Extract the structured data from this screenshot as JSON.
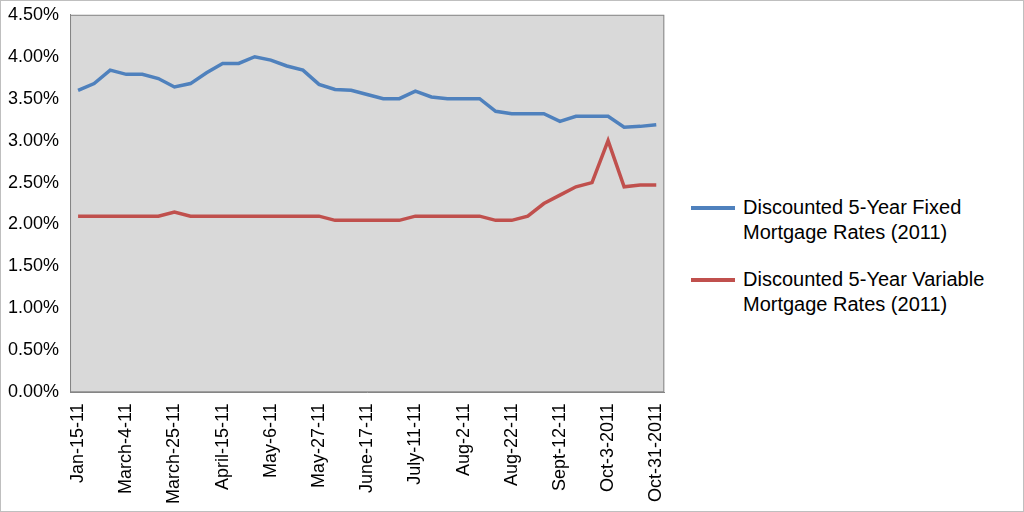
{
  "chart_data": {
    "type": "line",
    "categories": [
      "Jan-15-11",
      null,
      null,
      "March-4-11",
      null,
      null,
      "March-25-11",
      null,
      null,
      "April-15-11",
      null,
      null,
      "May-6-11",
      null,
      null,
      "May-27-11",
      null,
      null,
      "June-17-11",
      null,
      null,
      "July-11-11",
      null,
      null,
      "Aug-2-11",
      null,
      null,
      "Aug-22-11",
      null,
      null,
      "Sept-12-11",
      null,
      null,
      "Oct-3-2011",
      null,
      null,
      "Oct-31-2011"
    ],
    "series": [
      {
        "name": "Discounted 5-Year Fixed Mortgage Rates (2011)",
        "color": "#4f81bd",
        "marker": "none",
        "values": [
          3.6,
          3.68,
          3.84,
          3.79,
          3.79,
          3.74,
          3.64,
          3.68,
          3.81,
          3.92,
          3.92,
          4.0,
          3.96,
          3.89,
          3.84,
          3.67,
          3.61,
          3.6,
          3.55,
          3.5,
          3.5,
          3.59,
          3.52,
          3.5,
          3.5,
          3.5,
          3.35,
          3.32,
          3.32,
          3.32,
          3.23,
          3.29,
          3.29,
          3.29,
          3.16,
          3.17,
          3.19
        ]
      },
      {
        "name": "Discounted 5-Year Variable Mortgage Rates (2011)",
        "color": "#c0504d",
        "marker": "none",
        "values": [
          2.1,
          2.1,
          2.1,
          2.1,
          2.1,
          2.1,
          2.15,
          2.1,
          2.1,
          2.1,
          2.1,
          2.1,
          2.1,
          2.1,
          2.1,
          2.1,
          2.05,
          2.05,
          2.05,
          2.05,
          2.05,
          2.1,
          2.1,
          2.1,
          2.1,
          2.1,
          2.05,
          2.05,
          2.1,
          2.25,
          2.35,
          2.45,
          2.5,
          3.0,
          2.45,
          2.47,
          2.47
        ]
      }
    ],
    "ylim": [
      0,
      4.5
    ],
    "yticks": [
      {
        "value": 0,
        "label": "0.00%"
      },
      {
        "value": 0.5,
        "label": "0.50%"
      },
      {
        "value": 1,
        "label": "1.00%"
      },
      {
        "value": 1.5,
        "label": "1.50%"
      },
      {
        "value": 2,
        "label": "2.00%"
      },
      {
        "value": 2.5,
        "label": "2.50%"
      },
      {
        "value": 3,
        "label": "3.00%"
      },
      {
        "value": 3.5,
        "label": "3.50%"
      },
      {
        "value": 4,
        "label": "4.00%"
      },
      {
        "value": 4.5,
        "label": "4.50%"
      }
    ],
    "grid": false,
    "legend": "right"
  }
}
